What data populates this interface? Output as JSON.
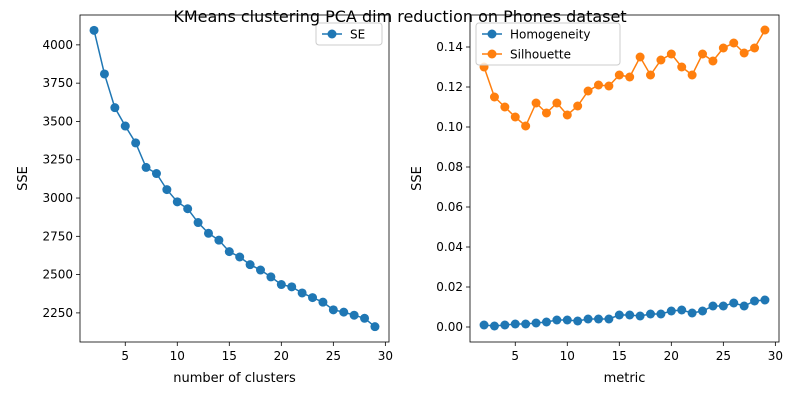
{
  "figure": {
    "title": "KMeans clustering PCA dim reduction on Phones dataset"
  },
  "colors": {
    "series_blue": "#1f77b4",
    "series_orange": "#ff7f0e",
    "axes": "#000000",
    "background": "#ffffff",
    "legend_border": "#cccccc"
  },
  "chart_data": [
    {
      "type": "line",
      "xlabel": "number of clusters",
      "ylabel": "SSE",
      "xlim": [
        0.65,
        30.35
      ],
      "ylim": [
        2060,
        4195
      ],
      "xticks": [
        5,
        10,
        15,
        20,
        25,
        30
      ],
      "yticks": [
        2250,
        2500,
        2750,
        3000,
        3250,
        3500,
        3750,
        4000
      ],
      "grid": false,
      "legend": "top-right",
      "x": [
        2,
        3,
        4,
        5,
        6,
        7,
        8,
        9,
        10,
        11,
        12,
        13,
        14,
        15,
        16,
        17,
        18,
        19,
        20,
        21,
        22,
        23,
        24,
        25,
        26,
        27,
        28,
        29
      ],
      "series": [
        {
          "name": "SE",
          "color": "#1f77b4",
          "marker": "circle",
          "values": [
            4095,
            3810,
            3590,
            3470,
            3360,
            3200,
            3160,
            3055,
            2975,
            2930,
            2840,
            2770,
            2725,
            2650,
            2615,
            2565,
            2530,
            2485,
            2435,
            2420,
            2380,
            2350,
            2320,
            2270,
            2255,
            2235,
            2215,
            2160
          ]
        }
      ]
    },
    {
      "type": "line",
      "xlabel": "metric",
      "ylabel": "SSE",
      "xlim": [
        0.65,
        30.35
      ],
      "ylim": [
        -0.0075,
        0.156
      ],
      "xticks": [
        5,
        10,
        15,
        20,
        25,
        30
      ],
      "yticks": [
        0.0,
        0.02,
        0.04,
        0.06,
        0.08,
        0.1,
        0.12,
        0.14
      ],
      "grid": false,
      "legend": "top-left",
      "x": [
        2,
        3,
        4,
        5,
        6,
        7,
        8,
        9,
        10,
        11,
        12,
        13,
        14,
        15,
        16,
        17,
        18,
        19,
        20,
        21,
        22,
        23,
        24,
        25,
        26,
        27,
        28,
        29
      ],
      "series": [
        {
          "name": "Homogeneity",
          "color": "#1f77b4",
          "marker": "circle",
          "values": [
            0.001,
            0.0005,
            0.001,
            0.0015,
            0.0015,
            0.002,
            0.0025,
            0.0035,
            0.0035,
            0.003,
            0.004,
            0.004,
            0.004,
            0.006,
            0.006,
            0.0055,
            0.0065,
            0.0065,
            0.008,
            0.0085,
            0.007,
            0.008,
            0.0105,
            0.0105,
            0.012,
            0.0105,
            0.013,
            0.0135
          ]
        },
        {
          "name": "Silhouette",
          "color": "#ff7f0e",
          "marker": "circle",
          "values": [
            0.13,
            0.115,
            0.11,
            0.105,
            0.1005,
            0.112,
            0.107,
            0.112,
            0.106,
            0.1105,
            0.118,
            0.121,
            0.1205,
            0.126,
            0.125,
            0.135,
            0.126,
            0.1335,
            0.1365,
            0.13,
            0.126,
            0.1365,
            0.133,
            0.1395,
            0.142,
            0.137,
            0.1395,
            0.1485
          ]
        }
      ]
    }
  ]
}
